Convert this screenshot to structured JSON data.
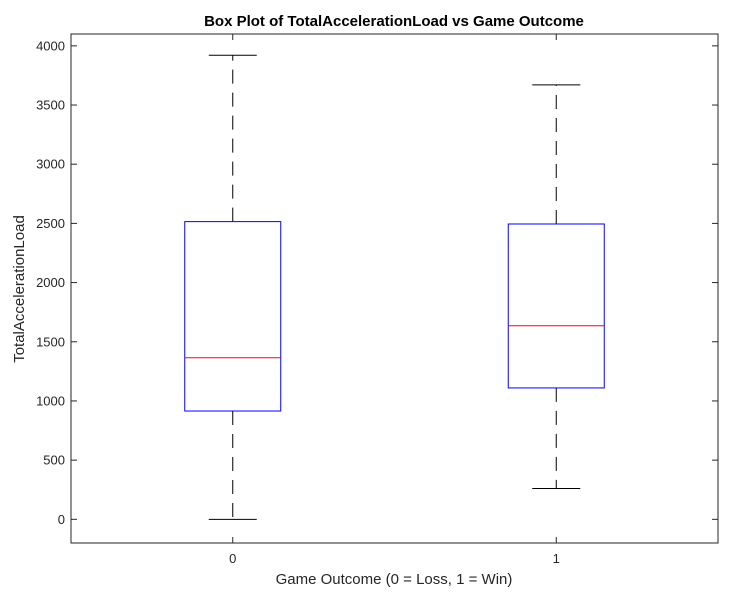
{
  "chart_data": {
    "type": "box",
    "title": "Box Plot of TotalAccelerationLoad vs Game Outcome",
    "xlabel": "Game Outcome (0 = Loss, 1 = Win)",
    "ylabel": "TotalAccelerationLoad",
    "categories": [
      "0",
      "1"
    ],
    "ylim": [
      -200,
      4100
    ],
    "yticks": [
      0,
      500,
      1000,
      1500,
      2000,
      2500,
      3000,
      3500,
      4000
    ],
    "grid": false,
    "boxes": [
      {
        "category": "0",
        "min": 0,
        "q1": 915,
        "median": 1365,
        "q3": 2515,
        "max": 3920
      },
      {
        "category": "1",
        "min": 260,
        "q1": 1110,
        "median": 1635,
        "q3": 2495,
        "max": 3670
      }
    ],
    "colors": {
      "box": "#0000ff",
      "median": "#ff0000",
      "whisker": "#000000",
      "axes": "#262626"
    }
  }
}
